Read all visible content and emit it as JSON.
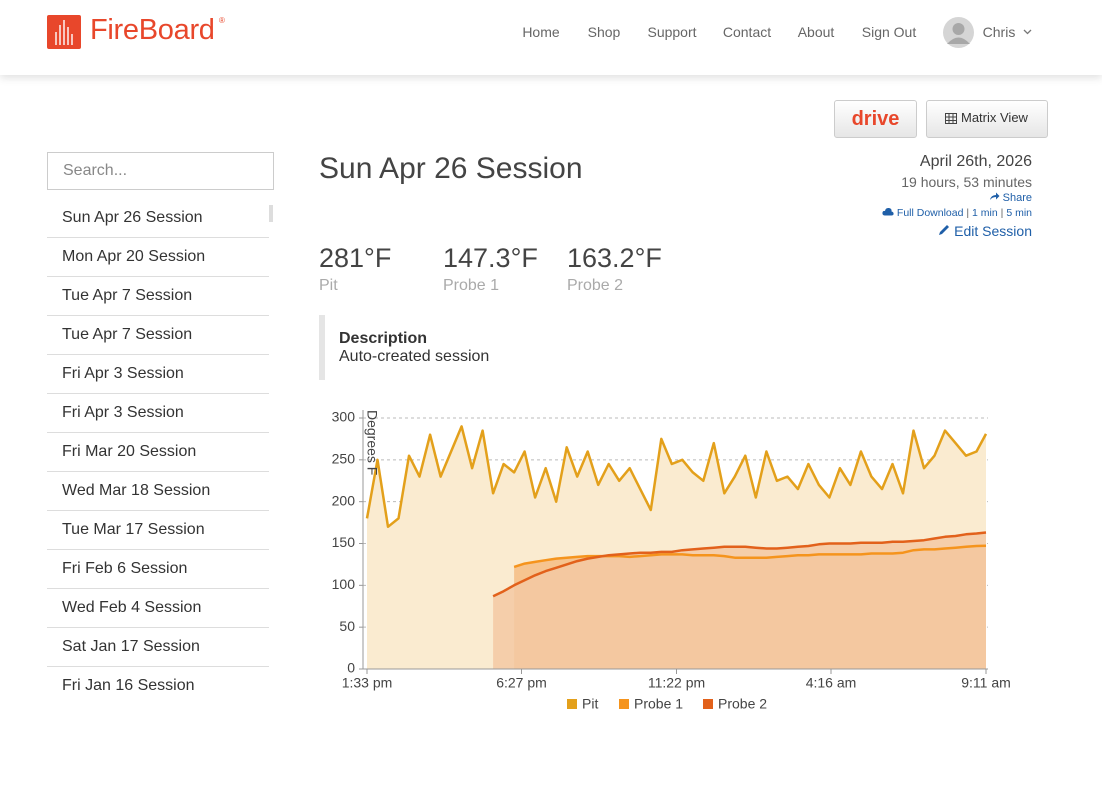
{
  "header": {
    "brand": "FireBoard",
    "nav": [
      "Home",
      "Shop",
      "Support",
      "Contact",
      "About",
      "Sign Out"
    ],
    "user": "Chris"
  },
  "toolbar": {
    "drive": "drive",
    "matrix": "Matrix View"
  },
  "sidebar": {
    "search_placeholder": "Search...",
    "sessions": [
      "Sun Apr 26 Session",
      "Mon Apr 20 Session",
      "Tue Apr 7 Session",
      "Tue Apr 7 Session",
      "Fri Apr 3 Session",
      "Fri Apr 3 Session",
      "Fri Mar 20 Session",
      "Wed Mar 18 Session",
      "Tue Mar 17 Session",
      "Fri Feb 6 Session",
      "Wed Feb 4 Session",
      "Sat Jan 17 Session",
      "Fri Jan 16 Session"
    ]
  },
  "session": {
    "title": "Sun Apr 26 Session",
    "date": "April 26th, 2026",
    "duration": "19 hours, 53 minutes",
    "share": "Share",
    "full_download": "Full Download",
    "sep": "|",
    "one_min": "1 min",
    "five_min": "5 min",
    "edit": "Edit Session",
    "readings": [
      {
        "value": "281°F",
        "label": "Pit"
      },
      {
        "value": "147.3°F",
        "label": "Probe 1"
      },
      {
        "value": "163.2°F",
        "label": "Probe 2"
      }
    ],
    "description_title": "Description",
    "description": "Auto-created session"
  },
  "chart_data": {
    "type": "area",
    "y_label": "Degrees F",
    "x": [
      0,
      20,
      40,
      60,
      80,
      100,
      120,
      140,
      160,
      180,
      200,
      220,
      240,
      260,
      280,
      300,
      320,
      340,
      360,
      380,
      400,
      420,
      440,
      460,
      480,
      500,
      520,
      540,
      560,
      580,
      600,
      620,
      640,
      660,
      680,
      700,
      720,
      740,
      760,
      780,
      800,
      820,
      840,
      860,
      880,
      900,
      920,
      940,
      960,
      980,
      1000,
      1020,
      1040,
      1060,
      1080,
      1100,
      1120,
      1140,
      1160,
      1178
    ],
    "xlim": [
      0,
      1178
    ],
    "xticks": [
      {
        "value": 0,
        "label": "1:33 pm"
      },
      {
        "value": 294,
        "label": "6:27 pm"
      },
      {
        "value": 589,
        "label": "11:22 pm"
      },
      {
        "value": 883,
        "label": "4:16 am"
      },
      {
        "value": 1178,
        "label": "9:11 am"
      }
    ],
    "ylim": [
      0,
      300
    ],
    "yticks": [
      0,
      50,
      100,
      150,
      200,
      250,
      300
    ],
    "grid": true,
    "series": [
      {
        "name": "Pit",
        "color": "#e3a01b",
        "fill": "#faebd0",
        "values": [
          180,
          250,
          170,
          180,
          255,
          230,
          280,
          230,
          260,
          290,
          240,
          285,
          210,
          245,
          235,
          260,
          205,
          240,
          200,
          265,
          230,
          260,
          220,
          245,
          225,
          240,
          215,
          190,
          275,
          245,
          250,
          235,
          225,
          270,
          210,
          230,
          255,
          205,
          260,
          225,
          230,
          215,
          245,
          220,
          205,
          240,
          220,
          260,
          230,
          215,
          245,
          210,
          285,
          240,
          255,
          285,
          270,
          255,
          260,
          281
        ]
      },
      {
        "name": "Probe 1",
        "color": "#f5941d",
        "fill": "#f5bd84",
        "values": [
          null,
          null,
          null,
          null,
          null,
          null,
          null,
          null,
          null,
          null,
          null,
          null,
          null,
          null,
          122,
          126,
          128,
          130,
          132,
          133,
          134,
          135,
          135,
          135,
          135,
          134,
          135,
          136,
          137,
          137,
          137,
          136,
          136,
          136,
          135,
          133,
          133,
          133,
          133,
          134,
          135,
          136,
          136,
          137,
          137,
          137,
          137,
          137,
          138,
          138,
          138,
          139,
          142,
          143,
          143,
          144,
          145,
          146,
          147,
          147.3
        ]
      },
      {
        "name": "Probe 2",
        "color": "#e2611b",
        "fill": "#f3c9a3",
        "values": [
          null,
          null,
          null,
          null,
          null,
          null,
          null,
          null,
          null,
          null,
          null,
          null,
          87,
          93,
          100,
          106,
          112,
          117,
          121,
          125,
          129,
          132,
          134,
          136,
          137,
          138,
          139,
          139,
          140,
          140,
          142,
          143,
          144,
          145,
          146,
          146,
          146,
          145,
          144,
          144,
          145,
          146,
          147,
          149,
          150,
          150,
          150,
          151,
          151,
          151,
          152,
          152,
          153,
          154,
          156,
          158,
          159,
          161,
          162,
          163.2
        ]
      }
    ]
  }
}
